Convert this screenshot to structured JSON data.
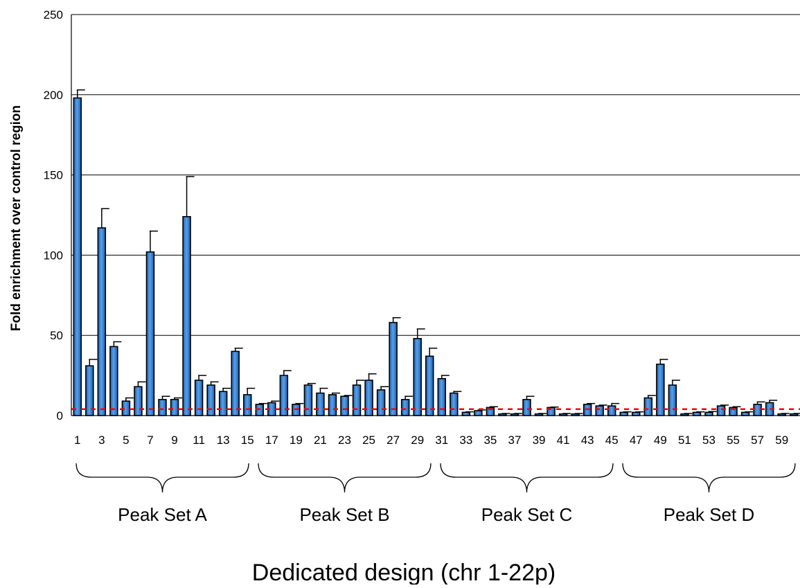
{
  "chart_data": {
    "type": "bar",
    "title": "",
    "xlabel": "Dedicated design (chr 1-22p)",
    "ylabel": "Fold enrichment over control region",
    "ylim": [
      0,
      250
    ],
    "yticks": [
      "0",
      "50",
      "100",
      "150",
      "200",
      "250"
    ],
    "grid": "horizontal",
    "categories": [
      "1",
      "2",
      "3",
      "4",
      "5",
      "6",
      "7",
      "8",
      "9",
      "10",
      "11",
      "12",
      "13",
      "14",
      "15",
      "16",
      "17",
      "18",
      "19",
      "20",
      "21",
      "22",
      "23",
      "24",
      "25",
      "26",
      "27",
      "28",
      "29",
      "30",
      "31",
      "32",
      "33",
      "34",
      "35",
      "36",
      "37",
      "38",
      "39",
      "40",
      "41",
      "42",
      "43",
      "44",
      "45",
      "46",
      "47",
      "48",
      "49",
      "50",
      "51",
      "52",
      "53",
      "54",
      "55",
      "56",
      "57",
      "58",
      "59",
      "60"
    ],
    "visible_x_tick_labels": [
      "1",
      "3",
      "5",
      "7",
      "9",
      "11",
      "13",
      "15",
      "17",
      "19",
      "21",
      "23",
      "25",
      "27",
      "29",
      "31",
      "33",
      "35",
      "37",
      "39",
      "41",
      "43",
      "45",
      "47",
      "49",
      "51",
      "53",
      "55",
      "57",
      "59"
    ],
    "values": [
      198,
      31,
      117,
      43,
      9,
      18,
      102,
      10,
      10,
      124,
      22,
      19,
      15,
      40,
      13,
      7,
      8,
      25,
      7,
      19,
      14,
      13,
      12,
      19,
      22,
      16,
      58,
      10,
      48,
      37,
      23,
      14,
      2,
      3,
      5,
      1,
      1,
      10,
      1,
      5,
      1,
      1,
      7,
      6,
      6,
      2,
      2,
      11,
      32,
      19,
      1,
      2,
      2,
      6,
      5,
      2,
      7,
      8,
      1,
      1
    ],
    "error": [
      5,
      4,
      12,
      3,
      2,
      3,
      13,
      2,
      1,
      25,
      3,
      2,
      2,
      2,
      4,
      0.5,
      1,
      3,
      0.5,
      1,
      3,
      1,
      0.5,
      3,
      4,
      2,
      3,
      2,
      6,
      5,
      2,
      1,
      0.3,
      0.5,
      0.5,
      0.3,
      0.3,
      2,
      0.3,
      0.3,
      0.3,
      0.3,
      0.5,
      0.5,
      1.5,
      0.3,
      0.3,
      1.5,
      3,
      3,
      0.3,
      0.3,
      0.5,
      0.5,
      0.5,
      0.3,
      1.5,
      1.5,
      0.3,
      0.3
    ],
    "threshold": 4,
    "groups": [
      {
        "label": "Peak Set A",
        "from": 1,
        "to": 15
      },
      {
        "label": "Peak Set B",
        "from": 16,
        "to": 30
      },
      {
        "label": "Peak Set C",
        "from": 31,
        "to": 45
      },
      {
        "label": "Peak Set D",
        "from": 46,
        "to": 60
      }
    ],
    "colors": {
      "bar_fill": "#1a5fb4",
      "bar_highlight": "#5aa0e6",
      "bar_edge": "#000000",
      "threshold": "#ff0000",
      "grid": "#000000"
    }
  }
}
